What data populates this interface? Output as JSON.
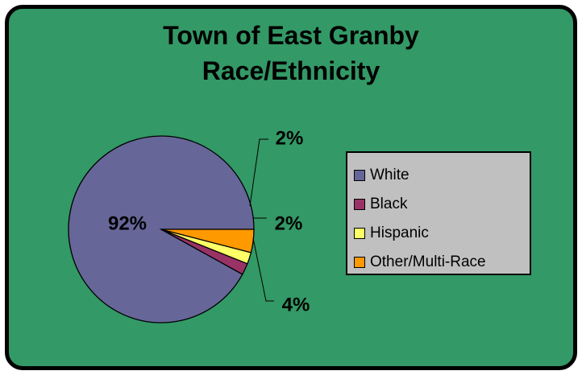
{
  "title": {
    "line1": "Town of East Granby",
    "line2": "Race/Ethnicity"
  },
  "chart_data": {
    "type": "pie",
    "title": "Town of East Granby Race/Ethnicity",
    "categories": [
      "White",
      "Black",
      "Hispanic",
      "Other/Multi-Race"
    ],
    "values": [
      92,
      2,
      2,
      4
    ],
    "labels": [
      "92%",
      "2%",
      "2%",
      "4%"
    ],
    "colors": [
      "#666699",
      "#993366",
      "#ffff66",
      "#ff9900"
    ],
    "legend_position": "right",
    "background_color": "#339966"
  }
}
